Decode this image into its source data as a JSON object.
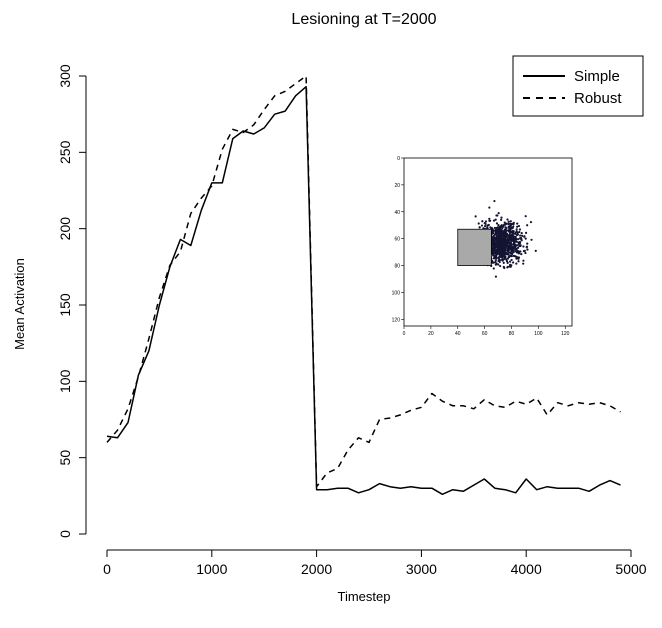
{
  "chart_data": {
    "type": "line",
    "title": "Lesioning at T=2000",
    "xlabel": "Timestep",
    "ylabel": "Mean Activation",
    "xlim": [
      0,
      5000
    ],
    "ylim": [
      0,
      300
    ],
    "xticks": [
      0,
      1000,
      2000,
      3000,
      4000,
      5000
    ],
    "yticks": [
      0,
      50,
      100,
      150,
      200,
      250,
      300
    ],
    "legend": {
      "placement": "top-right"
    },
    "series": [
      {
        "name": "Simple",
        "style": "solid",
        "color": "#000000",
        "x": [
          0,
          100,
          200,
          300,
          400,
          500,
          600,
          700,
          800,
          900,
          1000,
          1100,
          1200,
          1300,
          1400,
          1500,
          1600,
          1700,
          1800,
          1900,
          2000,
          2100,
          2200,
          2300,
          2400,
          2500,
          2600,
          2700,
          2800,
          2900,
          3000,
          3100,
          3200,
          3300,
          3400,
          3500,
          3600,
          3700,
          3800,
          3900,
          4000,
          4100,
          4200,
          4300,
          4400,
          4500,
          4600,
          4700,
          4800,
          4900
        ],
        "y": [
          64,
          63,
          73,
          104,
          120,
          150,
          175,
          193,
          189,
          212,
          230,
          230,
          259,
          264,
          262,
          266,
          275,
          277,
          287,
          293,
          29,
          29,
          30,
          30,
          27,
          29,
          33,
          31,
          30,
          31,
          30,
          30,
          26,
          29,
          28,
          32,
          36,
          30,
          29,
          27,
          36,
          29,
          31,
          30,
          30,
          30,
          28,
          32,
          35,
          32
        ]
      },
      {
        "name": "Robust",
        "style": "dashed",
        "color": "#000000",
        "x": [
          0,
          100,
          200,
          300,
          400,
          500,
          600,
          700,
          800,
          900,
          1000,
          1100,
          1200,
          1300,
          1400,
          1500,
          1600,
          1700,
          1800,
          1900,
          2000,
          2100,
          2200,
          2300,
          2400,
          2500,
          2600,
          2700,
          2800,
          2900,
          3000,
          3100,
          3200,
          3300,
          3400,
          3500,
          3600,
          3700,
          3800,
          3900,
          4000,
          4100,
          4200,
          4300,
          4400,
          4500,
          4600,
          4700,
          4800,
          4900
        ],
        "y": [
          60,
          68,
          82,
          103,
          128,
          155,
          176,
          185,
          210,
          220,
          228,
          252,
          265,
          263,
          268,
          278,
          287,
          290,
          295,
          300,
          31,
          40,
          43,
          55,
          63,
          60,
          75,
          76,
          78,
          81,
          83,
          92,
          87,
          84,
          84,
          82,
          88,
          84,
          83,
          87,
          85,
          89,
          78,
          86,
          84,
          86,
          85,
          86,
          84,
          80
        ]
      }
    ],
    "inset": {
      "type": "scatter",
      "xlim": [
        0,
        125
      ],
      "ylim": [
        125,
        0
      ],
      "xticks": [
        0,
        20,
        40,
        60,
        80,
        100,
        120
      ],
      "yticks": [
        0,
        20,
        40,
        60,
        80,
        100,
        120
      ],
      "lesion_rect": {
        "x0": 40,
        "x1": 65,
        "y0": 53,
        "y1": 80,
        "color": "#a9a9a9"
      },
      "cluster": {
        "center_x": 72,
        "center_y": 63,
        "spread_x": 15,
        "spread_y": 14,
        "count": 900,
        "color": "#141432"
      }
    }
  }
}
